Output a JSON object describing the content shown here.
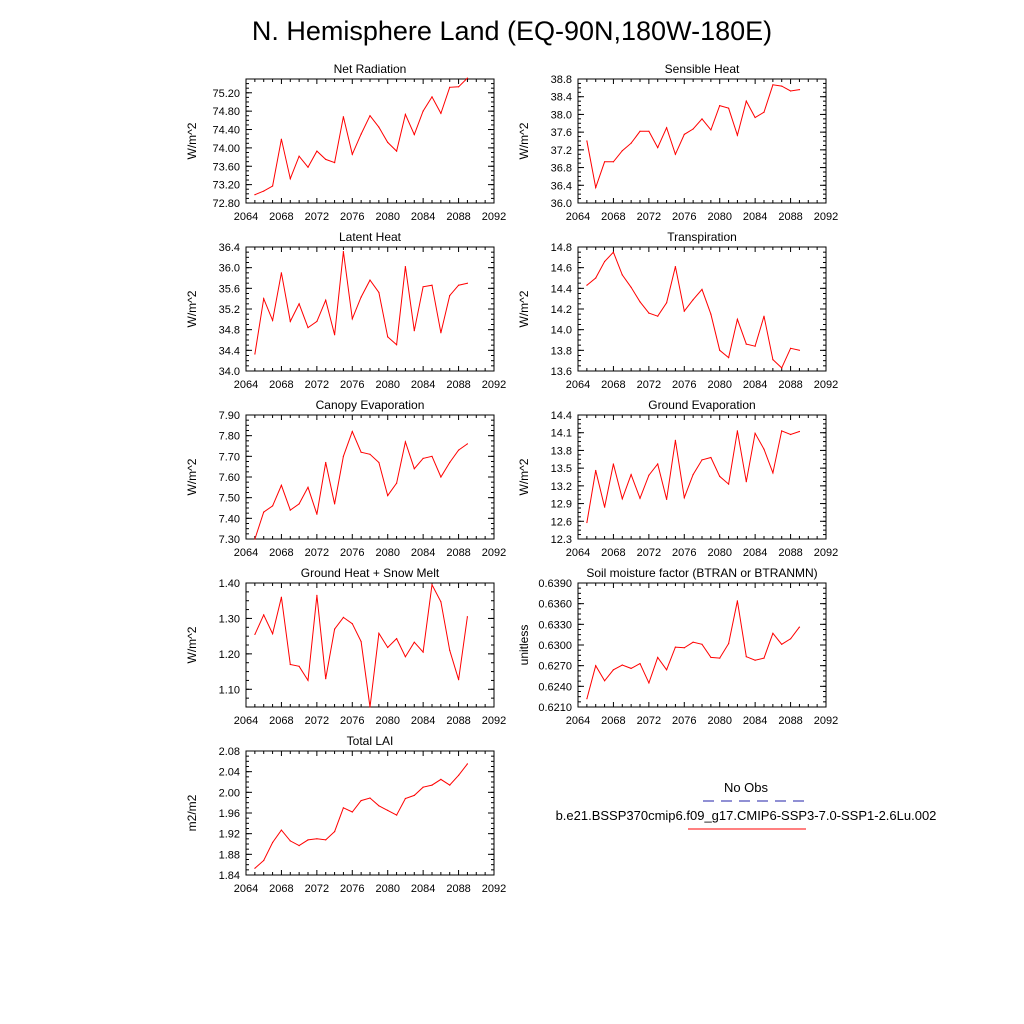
{
  "figure_title": "N. Hemisphere Land (EQ-90N,180W-180E)",
  "colors": {
    "model_line": "#ff0000",
    "obs_line": "#2222aa",
    "axis": "#000000"
  },
  "legend": {
    "obs_label": "No Obs",
    "model_label": "b.e21.BSSP370cmip6.f09_g17.CMIP6-SSP3-7.0-SSP1-2.6Lu.002"
  },
  "chart_data": [
    {
      "type": "line",
      "title": "Net Radiation",
      "ylabel": "W/m^2",
      "xlim": [
        2064,
        2092
      ],
      "xticks": [
        "2064",
        "2068",
        "2072",
        "2076",
        "2080",
        "2084",
        "2088",
        "2092"
      ],
      "ylim": [
        72.8,
        75.5
      ],
      "yticks": [
        "72.80",
        "73.20",
        "73.60",
        "74.00",
        "74.40",
        "74.80",
        "75.20"
      ],
      "x": [
        2065,
        2066,
        2067,
        2068,
        2069,
        2070,
        2071,
        2072,
        2073,
        2074,
        2075,
        2076,
        2077,
        2078,
        2079,
        2080,
        2081,
        2082,
        2083,
        2084,
        2085,
        2086,
        2087,
        2088,
        2089
      ],
      "series": [
        {
          "values": [
            72.98,
            73.06,
            73.17,
            74.19,
            73.33,
            73.82,
            73.58,
            73.93,
            73.75,
            73.68,
            74.68,
            73.86,
            74.3,
            74.7,
            74.45,
            74.12,
            73.93,
            74.73,
            74.29,
            74.8,
            75.11,
            74.75,
            75.32,
            75.33,
            75.52
          ]
        }
      ]
    },
    {
      "type": "line",
      "title": "Sensible Heat",
      "ylabel": "W/m^2",
      "xlim": [
        2064,
        2092
      ],
      "xticks": [
        "2064",
        "2068",
        "2072",
        "2076",
        "2080",
        "2084",
        "2088",
        "2092"
      ],
      "ylim": [
        36.0,
        38.8
      ],
      "yticks": [
        "36.0",
        "36.4",
        "36.8",
        "37.2",
        "37.6",
        "38.0",
        "38.4",
        "38.8"
      ],
      "x": [
        2065,
        2066,
        2067,
        2068,
        2069,
        2070,
        2071,
        2072,
        2073,
        2074,
        2075,
        2076,
        2077,
        2078,
        2079,
        2080,
        2081,
        2082,
        2083,
        2084,
        2085,
        2086,
        2087,
        2088,
        2089
      ],
      "series": [
        {
          "values": [
            37.4,
            36.35,
            36.93,
            36.93,
            37.18,
            37.35,
            37.62,
            37.62,
            37.25,
            37.7,
            37.1,
            37.55,
            37.67,
            37.9,
            37.65,
            38.2,
            38.14,
            37.53,
            38.3,
            37.93,
            38.05,
            38.67,
            38.64,
            38.53,
            38.56
          ]
        }
      ]
    },
    {
      "type": "line",
      "title": "Latent Heat",
      "ylabel": "W/m^2",
      "xlim": [
        2064,
        2092
      ],
      "xticks": [
        "2064",
        "2068",
        "2072",
        "2076",
        "2080",
        "2084",
        "2088",
        "2092"
      ],
      "ylim": [
        34.0,
        36.4
      ],
      "yticks": [
        "34.0",
        "34.4",
        "34.8",
        "35.2",
        "35.6",
        "36.0",
        "36.4"
      ],
      "x": [
        2065,
        2066,
        2067,
        2068,
        2069,
        2070,
        2071,
        2072,
        2073,
        2074,
        2075,
        2076,
        2077,
        2078,
        2079,
        2080,
        2081,
        2082,
        2083,
        2084,
        2085,
        2086,
        2087,
        2088,
        2089
      ],
      "series": [
        {
          "values": [
            34.33,
            35.4,
            34.98,
            35.9,
            34.96,
            35.3,
            34.84,
            34.96,
            35.37,
            34.7,
            36.31,
            35.01,
            35.43,
            35.76,
            35.52,
            34.66,
            34.51,
            36.02,
            34.78,
            35.63,
            35.66,
            34.74,
            35.46,
            35.66,
            35.7
          ]
        }
      ]
    },
    {
      "type": "line",
      "title": "Transpiration",
      "ylabel": "W/m^2",
      "xlim": [
        2064,
        2092
      ],
      "xticks": [
        "2064",
        "2068",
        "2072",
        "2076",
        "2080",
        "2084",
        "2088",
        "2092"
      ],
      "ylim": [
        13.6,
        14.8
      ],
      "yticks": [
        "13.6",
        "13.8",
        "14.0",
        "14.2",
        "14.4",
        "14.6",
        "14.8"
      ],
      "x": [
        2065,
        2066,
        2067,
        2068,
        2069,
        2070,
        2071,
        2072,
        2073,
        2074,
        2075,
        2076,
        2077,
        2078,
        2079,
        2080,
        2081,
        2082,
        2083,
        2084,
        2085,
        2086,
        2087,
        2088,
        2089
      ],
      "series": [
        {
          "values": [
            14.43,
            14.5,
            14.66,
            14.75,
            14.53,
            14.41,
            14.27,
            14.16,
            14.13,
            14.26,
            14.61,
            14.18,
            14.29,
            14.39,
            14.15,
            13.8,
            13.73,
            14.1,
            13.86,
            13.84,
            14.13,
            13.71,
            13.63,
            13.82,
            13.8
          ]
        }
      ]
    },
    {
      "type": "line",
      "title": "Canopy Evaporation",
      "ylabel": "W/m^2",
      "xlim": [
        2064,
        2092
      ],
      "xticks": [
        "2064",
        "2068",
        "2072",
        "2076",
        "2080",
        "2084",
        "2088",
        "2092"
      ],
      "ylim": [
        7.3,
        7.9
      ],
      "yticks": [
        "7.30",
        "7.40",
        "7.50",
        "7.60",
        "7.70",
        "7.80",
        "7.90"
      ],
      "x": [
        2065,
        2066,
        2067,
        2068,
        2069,
        2070,
        2071,
        2072,
        2073,
        2074,
        2075,
        2076,
        2077,
        2078,
        2079,
        2080,
        2081,
        2082,
        2083,
        2084,
        2085,
        2086,
        2087,
        2088,
        2089
      ],
      "series": [
        {
          "values": [
            7.3,
            7.43,
            7.46,
            7.56,
            7.44,
            7.47,
            7.55,
            7.42,
            7.67,
            7.47,
            7.7,
            7.82,
            7.72,
            7.71,
            7.67,
            7.51,
            7.57,
            7.77,
            7.64,
            7.69,
            7.7,
            7.6,
            7.67,
            7.73,
            7.76
          ]
        }
      ]
    },
    {
      "type": "line",
      "title": "Ground Evaporation",
      "ylabel": "W/m^2",
      "xlim": [
        2064,
        2092
      ],
      "xticks": [
        "2064",
        "2068",
        "2072",
        "2076",
        "2080",
        "2084",
        "2088",
        "2092"
      ],
      "ylim": [
        12.3,
        14.4
      ],
      "yticks": [
        "12.3",
        "12.6",
        "12.9",
        "13.2",
        "13.5",
        "13.8",
        "14.1",
        "14.4"
      ],
      "x": [
        2065,
        2066,
        2067,
        2068,
        2069,
        2070,
        2071,
        2072,
        2073,
        2074,
        2075,
        2076,
        2077,
        2078,
        2079,
        2080,
        2081,
        2082,
        2083,
        2084,
        2085,
        2086,
        2087,
        2088,
        2089
      ],
      "series": [
        {
          "values": [
            12.58,
            13.46,
            12.84,
            13.57,
            12.98,
            13.39,
            12.99,
            13.38,
            13.57,
            12.97,
            13.97,
            13.0,
            13.39,
            13.64,
            13.68,
            13.36,
            13.23,
            14.13,
            13.27,
            14.09,
            13.82,
            13.42,
            14.13,
            14.07,
            14.12
          ]
        }
      ]
    },
    {
      "type": "line",
      "title": "Ground Heat + Snow Melt",
      "ylabel": "W/m^2",
      "xlim": [
        2064,
        2092
      ],
      "xticks": [
        "2064",
        "2068",
        "2072",
        "2076",
        "2080",
        "2084",
        "2088",
        "2092"
      ],
      "ylim": [
        1.05,
        1.4
      ],
      "yticks": [
        "1.10",
        "1.20",
        "1.30",
        "1.40"
      ],
      "x": [
        2065,
        2066,
        2067,
        2068,
        2069,
        2070,
        2071,
        2072,
        2073,
        2074,
        2075,
        2076,
        2077,
        2078,
        2079,
        2080,
        2081,
        2082,
        2083,
        2084,
        2085,
        2086,
        2087,
        2088,
        2089
      ],
      "series": [
        {
          "values": [
            1.255,
            1.31,
            1.257,
            1.36,
            1.17,
            1.165,
            1.125,
            1.365,
            1.13,
            1.27,
            1.303,
            1.285,
            1.235,
            1.05,
            1.258,
            1.218,
            1.243,
            1.192,
            1.233,
            1.205,
            1.395,
            1.347,
            1.21,
            1.127,
            1.305
          ]
        }
      ]
    },
    {
      "type": "line",
      "title": "Soil moisture factor (BTRAN or BTRANMN)",
      "ylabel": "unitless",
      "xlim": [
        2064,
        2092
      ],
      "xticks": [
        "2064",
        "2068",
        "2072",
        "2076",
        "2080",
        "2084",
        "2088",
        "2092"
      ],
      "ylim": [
        0.621,
        0.639
      ],
      "yticks": [
        "0.6210",
        "0.6240",
        "0.6270",
        "0.6300",
        "0.6330",
        "0.6360",
        "0.6390"
      ],
      "x": [
        2065,
        2066,
        2067,
        2068,
        2069,
        2070,
        2071,
        2072,
        2073,
        2074,
        2075,
        2076,
        2077,
        2078,
        2079,
        2080,
        2081,
        2082,
        2083,
        2084,
        2085,
        2086,
        2087,
        2088,
        2089
      ],
      "series": [
        {
          "values": [
            0.6222,
            0.627,
            0.6248,
            0.6264,
            0.6271,
            0.6266,
            0.6273,
            0.6245,
            0.6282,
            0.6264,
            0.6297,
            0.6296,
            0.6304,
            0.6301,
            0.6282,
            0.6281,
            0.6302,
            0.6364,
            0.6283,
            0.6278,
            0.6281,
            0.6317,
            0.6301,
            0.6309,
            0.6326
          ]
        }
      ]
    },
    {
      "type": "line",
      "title": "Total LAI",
      "ylabel": "m2/m2",
      "xlim": [
        2064,
        2092
      ],
      "xticks": [
        "2064",
        "2068",
        "2072",
        "2076",
        "2080",
        "2084",
        "2088",
        "2092"
      ],
      "ylim": [
        1.84,
        2.08
      ],
      "yticks": [
        "1.84",
        "1.88",
        "1.92",
        "1.96",
        "2.00",
        "2.04",
        "2.08"
      ],
      "x": [
        2065,
        2066,
        2067,
        2068,
        2069,
        2070,
        2071,
        2072,
        2073,
        2074,
        2075,
        2076,
        2077,
        2078,
        2079,
        2080,
        2081,
        2082,
        2083,
        2084,
        2085,
        2086,
        2087,
        2088,
        2089
      ],
      "series": [
        {
          "values": [
            1.853,
            1.868,
            1.903,
            1.927,
            1.906,
            1.897,
            1.908,
            1.91,
            1.908,
            1.924,
            1.97,
            1.962,
            1.984,
            1.989,
            1.974,
            1.965,
            1.956,
            1.988,
            1.994,
            2.01,
            2.014,
            2.025,
            2.014,
            2.033,
            2.055
          ]
        }
      ]
    }
  ]
}
